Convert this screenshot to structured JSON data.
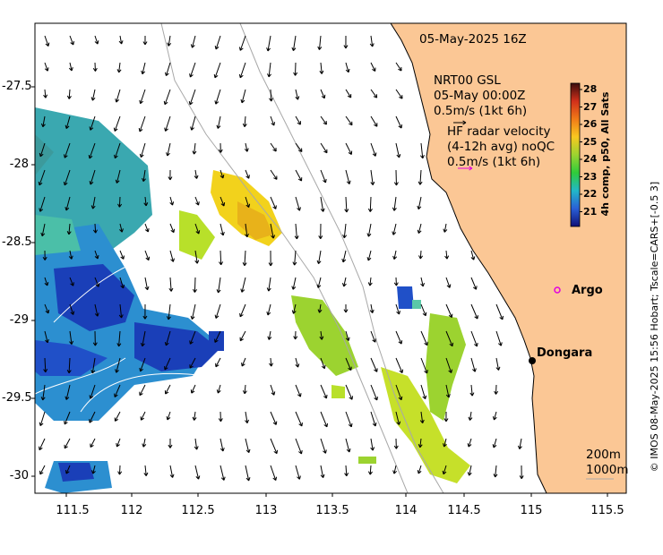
{
  "map": {
    "timestamp": "05-May-2025 16Z",
    "model_title": "NRT00 GSL",
    "model_time": "05-May 00:00Z",
    "model_scale": "0.5m/s (1kt 6h)",
    "radar_title": "HF radar velocity",
    "radar_avg": "(4-12h avg) noQC",
    "radar_scale": "0.5m/s (1kt 6h)",
    "radar_color": "#e000e0",
    "land_color": "#fbc795",
    "x_ticks": [
      "111.5",
      "112",
      "112.5",
      "113",
      "113.5",
      "114",
      "114.5",
      "115",
      "115.5"
    ],
    "y_ticks": [
      "-27.5",
      "-28",
      "-28.5",
      "-29",
      "-29.5",
      "-30"
    ],
    "places": [
      {
        "name": "Argo",
        "marker": "circle-outline",
        "color": "#e000e0"
      },
      {
        "name": "Dongara",
        "marker": "dot",
        "color": "#000000"
      }
    ],
    "contours": [
      "200m",
      "1000m"
    ],
    "credit": "© IMOS 08-May-2025 15:56 Hobart; Tscale=CARS+[-0.5 3]"
  },
  "colorbar": {
    "title": "4h comp, p50, All Sats",
    "ticks": [
      "28",
      "27",
      "26",
      "25",
      "24",
      "23",
      "22",
      "21"
    ],
    "colors": [
      "#3b0d0d",
      "#d1301a",
      "#f07a18",
      "#f8c820",
      "#9cd330",
      "#2fcc3a",
      "#22b8c8",
      "#2a5fd6",
      "#101078"
    ]
  }
}
